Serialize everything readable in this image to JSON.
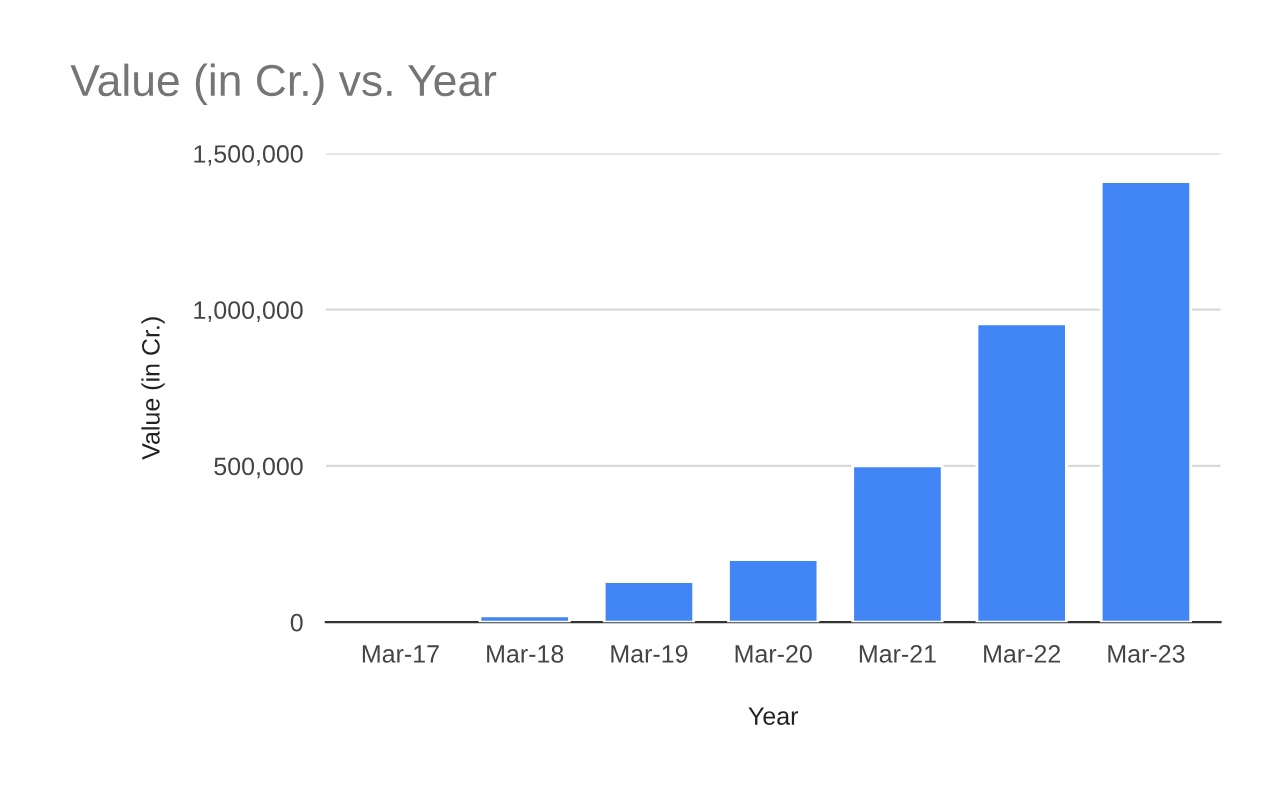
{
  "chart_data": {
    "type": "bar",
    "title": "Value (in Cr.) vs. Year",
    "xlabel": "Year",
    "ylabel": "Value (in Cr.)",
    "categories": [
      "Mar-17",
      "Mar-18",
      "Mar-19",
      "Mar-20",
      "Mar-21",
      "Mar-22",
      "Mar-23"
    ],
    "series": [
      {
        "color": "#4285f4",
        "values": [
          null,
          20000,
          130000,
          200000,
          500000,
          955000,
          1410000
        ]
      }
    ],
    "ylim": [
      0,
      1500000
    ],
    "yticks": [
      {
        "value": 0,
        "label": "0"
      },
      {
        "value": 500000,
        "label": "500,000"
      },
      {
        "value": 1000000,
        "label": "1,000,000"
      },
      {
        "value": 1500000,
        "label": "1,500,000"
      }
    ],
    "grid": "y",
    "legend": false
  }
}
